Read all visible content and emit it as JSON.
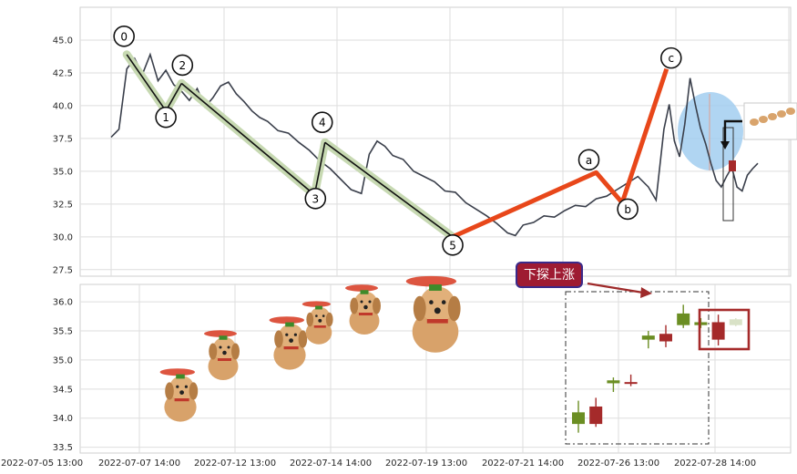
{
  "chart_data": [
    {
      "type": "line",
      "panel": "top",
      "ylim": [
        27.0,
        47.5
      ],
      "y_ticks": [
        "27.5",
        "30.0",
        "32.5",
        "35.0",
        "37.5",
        "40.0",
        "42.5",
        "45.0"
      ],
      "grid": true,
      "price_series": [
        [
          0,
          37.6
        ],
        [
          0.3,
          38.2
        ],
        [
          0.6,
          42.8
        ],
        [
          0.9,
          43.6
        ],
        [
          1.2,
          42.4
        ],
        [
          1.5,
          43.9
        ],
        [
          1.8,
          41.9
        ],
        [
          2.1,
          42.7
        ],
        [
          2.4,
          41.6
        ],
        [
          2.7,
          41.1
        ],
        [
          3.0,
          40.4
        ],
        [
          3.3,
          41.3
        ],
        [
          3.6,
          39.9
        ],
        [
          3.9,
          40.6
        ],
        [
          4.2,
          41.5
        ],
        [
          4.5,
          41.8
        ],
        [
          4.8,
          40.9
        ],
        [
          5.1,
          40.3
        ],
        [
          5.4,
          39.6
        ],
        [
          5.7,
          39.1
        ],
        [
          6.0,
          38.8
        ],
        [
          6.4,
          38.1
        ],
        [
          6.8,
          37.9
        ],
        [
          7.2,
          37.2
        ],
        [
          7.6,
          36.6
        ],
        [
          8.0,
          35.8
        ],
        [
          8.4,
          35.2
        ],
        [
          8.8,
          34.4
        ],
        [
          9.2,
          33.6
        ],
        [
          9.6,
          33.3
        ],
        [
          9.9,
          36.3
        ],
        [
          10.2,
          37.3
        ],
        [
          10.5,
          36.9
        ],
        [
          10.8,
          36.2
        ],
        [
          11.2,
          35.9
        ],
        [
          11.6,
          35.0
        ],
        [
          12.0,
          34.6
        ],
        [
          12.4,
          34.2
        ],
        [
          12.8,
          33.5
        ],
        [
          13.2,
          33.4
        ],
        [
          13.6,
          32.6
        ],
        [
          14.0,
          32.1
        ],
        [
          14.4,
          31.6
        ],
        [
          14.8,
          31.0
        ],
        [
          15.2,
          30.3
        ],
        [
          15.5,
          30.1
        ],
        [
          15.8,
          30.9
        ],
        [
          16.2,
          31.1
        ],
        [
          16.6,
          31.6
        ],
        [
          17.0,
          31.5
        ],
        [
          17.4,
          32.0
        ],
        [
          17.8,
          32.4
        ],
        [
          18.2,
          32.3
        ],
        [
          18.6,
          32.9
        ],
        [
          19.0,
          33.1
        ],
        [
          19.4,
          33.6
        ],
        [
          19.8,
          34.1
        ],
        [
          20.2,
          34.6
        ],
        [
          20.6,
          33.8
        ],
        [
          20.9,
          32.8
        ],
        [
          21.2,
          38.2
        ],
        [
          21.4,
          40.1
        ],
        [
          21.6,
          37.3
        ],
        [
          21.8,
          36.1
        ],
        [
          22.0,
          38.6
        ],
        [
          22.2,
          42.1
        ],
        [
          22.4,
          40.1
        ],
        [
          22.6,
          38.3
        ],
        [
          22.8,
          37.1
        ],
        [
          23.0,
          35.6
        ],
        [
          23.2,
          34.3
        ],
        [
          23.4,
          33.8
        ],
        [
          23.6,
          34.6
        ],
        [
          23.8,
          35.3
        ],
        [
          24.0,
          33.8
        ],
        [
          24.2,
          33.5
        ],
        [
          24.4,
          34.7
        ],
        [
          24.6,
          35.2
        ],
        [
          24.8,
          35.6
        ]
      ],
      "wave_points": [
        {
          "label": "0",
          "x": 0.6,
          "y": 43.9
        },
        {
          "label": "1",
          "x": 2.1,
          "y": 39.6
        },
        {
          "label": "2",
          "x": 2.7,
          "y": 41.7
        },
        {
          "label": "3",
          "x": 7.8,
          "y": 33.2
        },
        {
          "label": "4",
          "x": 8.2,
          "y": 37.2
        },
        {
          "label": "5",
          "x": 13.1,
          "y": 30.0
        },
        {
          "label": "a",
          "x": 18.6,
          "y": 34.9
        },
        {
          "label": "b",
          "x": 19.6,
          "y": 32.6
        },
        {
          "label": "c",
          "x": 21.3,
          "y": 42.8
        }
      ],
      "x_range": [
        -0.3,
        25.8
      ]
    },
    {
      "type": "candlestick",
      "panel": "bottom",
      "ylim": [
        33.4,
        36.3
      ],
      "y_ticks": [
        "33.5",
        "34.0",
        "34.5",
        "35.0",
        "35.5",
        "36.0"
      ],
      "x_ticks": [
        "2022-07-05 13:00",
        "2022-07-07 14:00",
        "2022-07-12 13:00",
        "2022-07-14 14:00",
        "2022-07-19 13:00",
        "2022-07-21 14:00",
        "2022-07-26 13:00",
        "2022-07-28 14:00"
      ],
      "grid": true,
      "candles": [
        {
          "open": 33.9,
          "close": 34.1,
          "high": 34.3,
          "low": 33.75,
          "dir": "up"
        },
        {
          "open": 34.2,
          "close": 33.9,
          "high": 34.35,
          "low": 33.85,
          "dir": "down"
        },
        {
          "open": 34.6,
          "close": 34.65,
          "high": 34.7,
          "low": 34.45,
          "dir": "up"
        },
        {
          "open": 34.62,
          "close": 34.6,
          "high": 34.75,
          "low": 34.55,
          "dir": "down"
        },
        {
          "open": 35.35,
          "close": 35.42,
          "high": 35.5,
          "low": 35.2,
          "dir": "up"
        },
        {
          "open": 35.45,
          "close": 35.32,
          "high": 35.6,
          "low": 35.22,
          "dir": "down"
        },
        {
          "open": 35.6,
          "close": 35.8,
          "high": 35.95,
          "low": 35.55,
          "dir": "up"
        },
        {
          "open": 35.6,
          "close": 35.65,
          "high": 35.72,
          "low": 35.55,
          "dir": "up"
        },
        {
          "open": 35.65,
          "close": 35.35,
          "high": 35.78,
          "low": 35.25,
          "dir": "down"
        },
        {
          "open": 35.6,
          "close": 35.7,
          "high": 35.72,
          "low": 35.58,
          "dir": "up"
        }
      ],
      "annotation": "下探上涨"
    }
  ],
  "colors": {
    "price_line": "#3a3f4b",
    "wave_band": "#c7d9b2",
    "wave_line": "#111111",
    "abc_line": "#e8471a",
    "up_candle": "#6b8e23",
    "down_candle": "#a52a2a",
    "tag_fill": "#9e1b32",
    "tag_border": "#3b2a8a",
    "ellipse": "#9ccbef",
    "focus_box": "#a52a2a"
  },
  "decor": {
    "mascot": "flying-puppy-mascot"
  }
}
